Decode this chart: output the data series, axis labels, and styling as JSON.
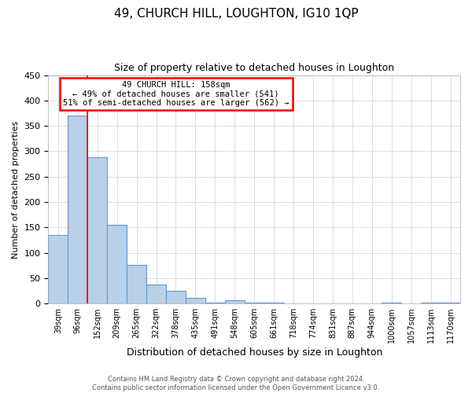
{
  "title1": "49, CHURCH HILL, LOUGHTON, IG10 1QP",
  "title2": "Size of property relative to detached houses in Loughton",
  "xlabel": "Distribution of detached houses by size in Loughton",
  "ylabel": "Number of detached properties",
  "bar_labels": [
    "39sqm",
    "96sqm",
    "152sqm",
    "209sqm",
    "265sqm",
    "322sqm",
    "378sqm",
    "435sqm",
    "491sqm",
    "548sqm",
    "605sqm",
    "661sqm",
    "718sqm",
    "774sqm",
    "831sqm",
    "887sqm",
    "944sqm",
    "1000sqm",
    "1057sqm",
    "1113sqm",
    "1170sqm"
  ],
  "bar_values": [
    135,
    370,
    288,
    155,
    76,
    38,
    25,
    11,
    2,
    7,
    2,
    1,
    0,
    0,
    0,
    0,
    0,
    2,
    0,
    1,
    1
  ],
  "bar_color": "#b8d0e8",
  "bar_edgecolor": "#6699cc",
  "ylim": [
    0,
    450
  ],
  "yticks": [
    0,
    50,
    100,
    150,
    200,
    250,
    300,
    350,
    400,
    450
  ],
  "annotation_title": "49 CHURCH HILL: 158sqm",
  "annotation_line1": "← 49% of detached houses are smaller (541)",
  "annotation_line2": "51% of semi-detached houses are larger (562) →",
  "footer1": "Contains HM Land Registry data © Crown copyright and database right 2024.",
  "footer2": "Contains public sector information licensed under the Open Government Licence v3.0.",
  "background_color": "#ffffff",
  "grid_color": "#cccccc",
  "redline_index": 2.0
}
